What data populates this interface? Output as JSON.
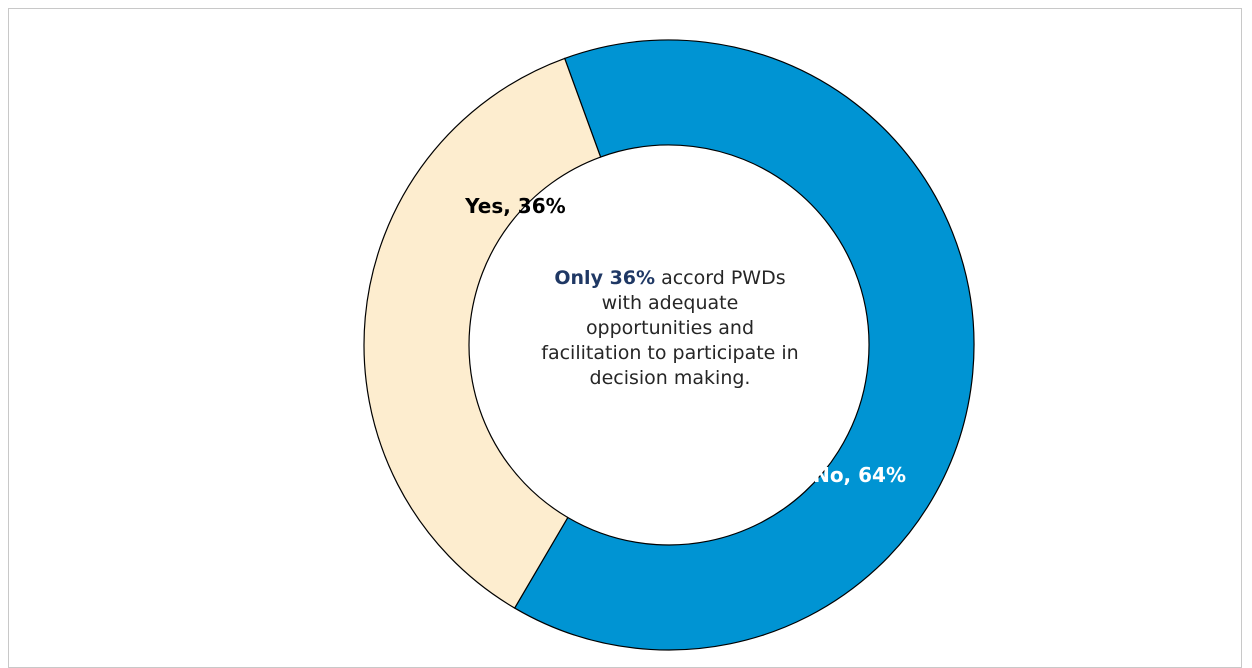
{
  "chart_data": {
    "type": "pie",
    "variant": "donut",
    "slices": [
      {
        "label": "No",
        "value": 64,
        "display": "No, 64%",
        "color": "#0094d3",
        "label_color": "#ffffff"
      },
      {
        "label": "Yes",
        "value": 36,
        "display": "Yes, 36%",
        "color": "#fdedcf",
        "label_color": "#000000"
      }
    ],
    "center_annotation": {
      "highlight": "Only 36%",
      "text": "accord PWDs with adequate opportunities and facilitation to participate in decision making."
    },
    "legend": "none"
  }
}
